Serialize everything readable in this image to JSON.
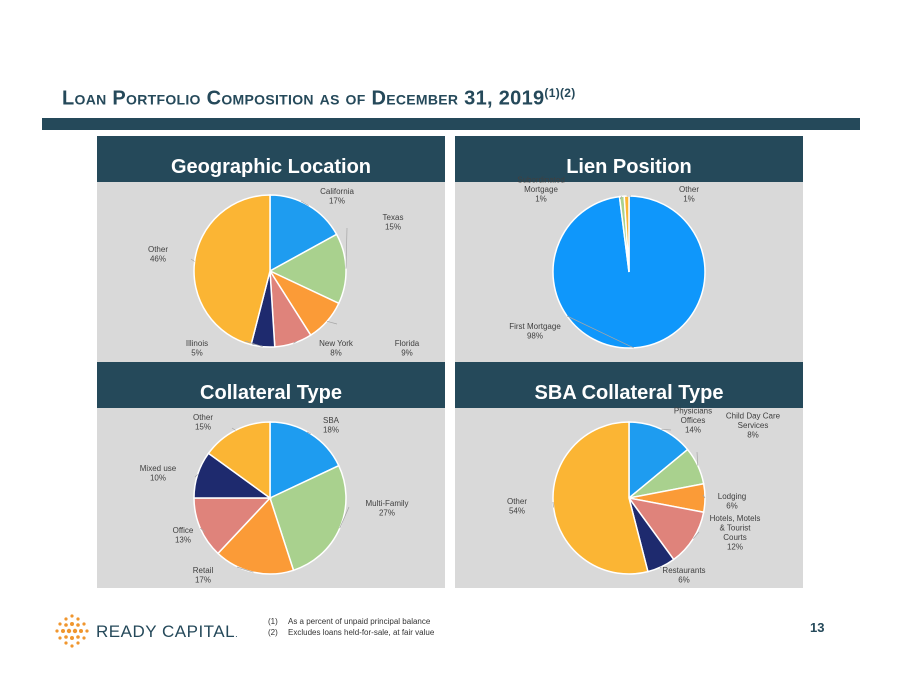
{
  "page": {
    "title": "Loan Portfolio Composition as of December 31, 2019",
    "title_sup": "(1)(2)",
    "page_number": "13",
    "footnotes": [
      {
        "num": "(1)",
        "text": "As a percent of unpaid principal balance"
      },
      {
        "num": "(2)",
        "text": "Excludes loans held-for-sale, at fair value"
      }
    ],
    "logo_text": "READY CAPITAL",
    "logo_mark": "."
  },
  "chart_data": [
    {
      "type": "pie",
      "title": "Geographic Location",
      "slices": [
        {
          "label": "California",
          "value": 17,
          "display": "17%",
          "color": "#1e9cf0"
        },
        {
          "label": "Texas",
          "value": 15,
          "display": "15%",
          "color": "#a9d18e"
        },
        {
          "label": "Florida",
          "value": 9,
          "display": "9%",
          "color": "#fb9b37"
        },
        {
          "label": "New York",
          "value": 8,
          "display": "8%",
          "color": "#df837b"
        },
        {
          "label": "Illinois",
          "value": 5,
          "display": "5%",
          "color": "#1e2a6e"
        },
        {
          "label": "Other",
          "value": 46,
          "display": "46%",
          "color": "#fbb534"
        }
      ]
    },
    {
      "type": "pie",
      "title": "Lien Position",
      "slices": [
        {
          "label": "First Mortgage",
          "value": 98,
          "display": "98%",
          "color": "#0f97fb"
        },
        {
          "label": "Subordinated Mortgage",
          "value": 1,
          "display": "1%",
          "color": "#a9d18e"
        },
        {
          "label": "Other",
          "value": 1,
          "display": "1%",
          "color": "#fbb534"
        }
      ]
    },
    {
      "type": "pie",
      "title": "Collateral Type",
      "slices": [
        {
          "label": "SBA",
          "value": 18,
          "display": "18%",
          "color": "#1e9cf0"
        },
        {
          "label": "Multi-Family",
          "value": 27,
          "display": "27%",
          "color": "#a9d18e"
        },
        {
          "label": "Retail",
          "value": 17,
          "display": "17%",
          "color": "#fb9b37"
        },
        {
          "label": "Office",
          "value": 13,
          "display": "13%",
          "color": "#df837b"
        },
        {
          "label": "Mixed use",
          "value": 10,
          "display": "10%",
          "color": "#1e2a6e"
        },
        {
          "label": "Other",
          "value": 15,
          "display": "15%",
          "color": "#fbb534"
        }
      ]
    },
    {
      "type": "pie",
      "title": "SBA Collateral Type",
      "slices": [
        {
          "label": "Physicians Offices",
          "value": 14,
          "display": "14%",
          "color": "#1e9cf0"
        },
        {
          "label": "Child Day Care Services",
          "value": 8,
          "display": "8%",
          "color": "#a9d18e"
        },
        {
          "label": "Lodging",
          "value": 6,
          "display": "6%",
          "color": "#fb9b37"
        },
        {
          "label": "Hotels, Motels & Tourist Courts",
          "value": 12,
          "display": "12%",
          "color": "#df837b"
        },
        {
          "label": "Restaurants",
          "value": 6,
          "display": "6%",
          "color": "#1e2a6e"
        },
        {
          "label": "Other",
          "value": 54,
          "display": "54%",
          "color": "#fbb534"
        }
      ]
    }
  ]
}
